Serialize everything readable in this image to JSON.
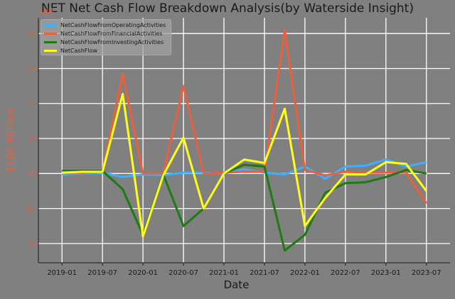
{
  "chart_data": {
    "type": "line",
    "title": "NET Net Cash Flow Breakdown Analysis(by Waterside Insight)",
    "xlabel": "Date",
    "ylabel": "$100 Million",
    "y_multiplier_label": "1e8",
    "xticks": [
      "2019-01",
      "2019-07",
      "2020-01",
      "2020-07",
      "2021-01",
      "2021-07",
      "2022-01",
      "2022-07",
      "2023-01",
      "2023-07"
    ],
    "yticks": [
      -4,
      -2,
      0,
      2,
      4,
      6,
      8
    ],
    "ylim": [
      -5.1,
      8.9
    ],
    "grid": true,
    "legend_position": "top-left",
    "x": [
      "2019-01",
      "2019-04",
      "2019-07",
      "2019-10",
      "2020-01",
      "2020-04",
      "2020-07",
      "2020-10",
      "2021-01",
      "2021-04",
      "2021-07",
      "2021-10",
      "2022-01",
      "2022-04",
      "2022-07",
      "2022-10",
      "2023-01",
      "2023-04",
      "2023-07"
    ],
    "series": [
      {
        "name": "NetCashFlowFromOperatingActivities",
        "color": "#3ab0ff",
        "values": [
          -0.05,
          0.0,
          0.05,
          -0.2,
          -0.05,
          -0.1,
          0.05,
          0.05,
          0.0,
          0.25,
          0.05,
          -0.05,
          0.4,
          -0.3,
          0.4,
          0.45,
          0.8,
          0.4,
          0.65
        ]
      },
      {
        "name": "NetCashFlowFromFinancialActivities",
        "color": "#e8603c",
        "values": [
          0.05,
          0.05,
          0.1,
          5.7,
          0.0,
          0.0,
          5.0,
          0.0,
          0.05,
          0.1,
          0.1,
          8.2,
          0.2,
          -0.1,
          0.1,
          0.05,
          0.05,
          0.05,
          -1.7
        ]
      },
      {
        "name": "NetCashFlowFromInvestingActivities",
        "color": "#1e7a12",
        "values": [
          0.15,
          0.15,
          0.15,
          -0.9,
          -3.5,
          -0.05,
          -3.0,
          -2.0,
          0.0,
          0.5,
          0.4,
          -4.4,
          -3.5,
          -1.1,
          -0.55,
          -0.5,
          -0.2,
          0.2,
          0.0
        ]
      },
      {
        "name": "NetCashFlow",
        "color": "#ffff1a",
        "values": [
          0.05,
          0.1,
          0.1,
          4.55,
          -3.6,
          -0.1,
          2.05,
          -2.0,
          0.0,
          0.8,
          0.6,
          3.7,
          -3.0,
          -1.4,
          -0.05,
          -0.05,
          0.65,
          0.55,
          -1.0
        ]
      }
    ]
  }
}
